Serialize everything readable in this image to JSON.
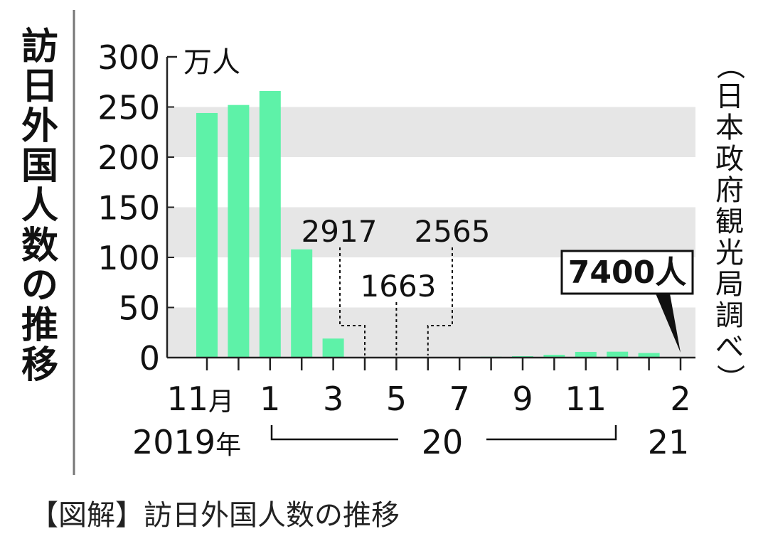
{
  "title_vertical": "訪日外国人数の推移",
  "source_note": "（日本政府観光局調べ）",
  "caption": "【図解】訪日外国人数の推移",
  "colors": {
    "bar": "#5ef2a8",
    "band": "#e6e6e6",
    "axis": "#222222"
  },
  "chart_data": {
    "type": "bar",
    "title": "訪日外国人数の推移",
    "ylabel": "万人",
    "ylim": [
      0,
      300
    ],
    "yticks": [
      "300",
      "250",
      "200",
      "150",
      "100",
      "50",
      "0"
    ],
    "grid": "alternating bands",
    "months": [
      "2019-11",
      "2019-12",
      "2020-01",
      "2020-02",
      "2020-03",
      "2020-04",
      "2020-05",
      "2020-06",
      "2020-07",
      "2020-08",
      "2020-09",
      "2020-10",
      "2020-11",
      "2020-12",
      "2021-01",
      "2021-02"
    ],
    "values": [
      244,
      252,
      266,
      108,
      19,
      0.2917,
      0.1663,
      0.2565,
      0.4,
      0.9,
      1.4,
      2.8,
      5.7,
      5.9,
      4.6,
      0.74
    ],
    "xtick_labels": [
      {
        "i": 0,
        "text": "11月"
      },
      {
        "i": 2,
        "text": "1"
      },
      {
        "i": 4,
        "text": "3"
      },
      {
        "i": 6,
        "text": "5"
      },
      {
        "i": 8,
        "text": "7"
      },
      {
        "i": 10,
        "text": "9"
      },
      {
        "i": 12,
        "text": "11"
      },
      {
        "i": 15,
        "text": "2"
      }
    ],
    "year_labels": {
      "y2019": "2019年",
      "y2020": "20",
      "y2021": "21"
    },
    "annotations": [
      {
        "i": 5,
        "text": "2917"
      },
      {
        "i": 6,
        "text": "1663"
      },
      {
        "i": 7,
        "text": "2565"
      },
      {
        "i": 15,
        "text": "7400人"
      }
    ]
  }
}
